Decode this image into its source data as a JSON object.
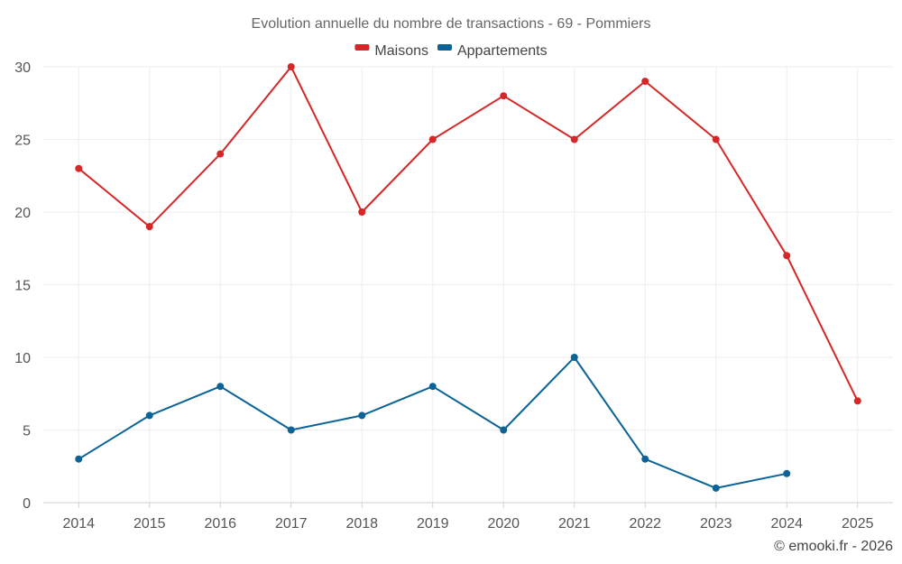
{
  "chart_data": {
    "type": "line",
    "title": "Evolution annuelle du nombre de transactions - 69 - Pommiers",
    "xlabel": "",
    "ylabel": "",
    "categories": [
      "2014",
      "2015",
      "2016",
      "2017",
      "2018",
      "2019",
      "2020",
      "2021",
      "2022",
      "2023",
      "2024",
      "2025"
    ],
    "ylim": [
      0,
      30
    ],
    "yticks": [
      "0",
      "5",
      "10",
      "15",
      "20",
      "25",
      "30"
    ],
    "grid": true,
    "legend_position": "top-center",
    "series": [
      {
        "name": "Maisons",
        "color": "#d62728",
        "values": [
          23,
          19,
          24,
          30,
          20,
          25,
          28,
          25,
          29,
          25,
          17,
          7
        ]
      },
      {
        "name": "Appartements",
        "color": "#0b6397",
        "values": [
          3,
          6,
          8,
          5,
          6,
          8,
          5,
          10,
          3,
          1,
          2,
          null
        ]
      }
    ],
    "credit": "© emooki.fr - 2026"
  }
}
